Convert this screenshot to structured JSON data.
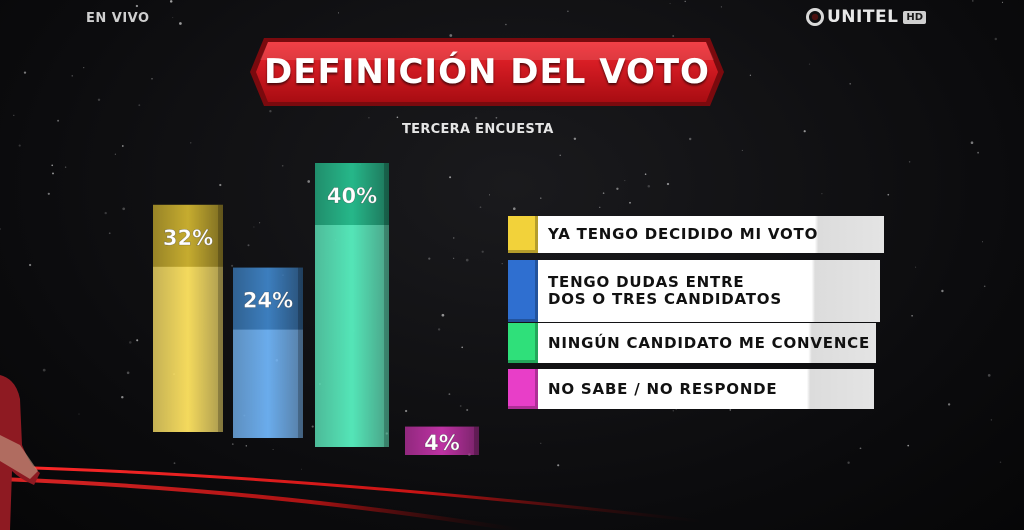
{
  "live_label": "EN VIVO",
  "logo": {
    "name": "UNITEL",
    "badge": "HD"
  },
  "title": "DEFINICIÓN DEL VOTO",
  "subtitle": "TERCERA ENCUESTA",
  "colors": {
    "banner": "#d4141c",
    "yellow": "#f2d23a",
    "blue": "#4a9ae8",
    "green": "#2fe0a8",
    "magenta": "#e83ec8"
  },
  "chart_data": {
    "type": "bar",
    "categories": [
      "YA TENGO DECIDIDO MI VOTO",
      "TENGO DUDAS ENTRE DOS O TRES CANDIDATOS",
      "NINGÚN CANDIDATO ME CONVENCE",
      "NO SABE / NO RESPONDE"
    ],
    "values": [
      32,
      24,
      40,
      4
    ],
    "labels": [
      "32%",
      "24%",
      "40%",
      "4%"
    ],
    "colors": [
      "#f2d23a",
      "#4a9ae8",
      "#2fe0a8",
      "#e83ec8"
    ],
    "title": "DEFINICIÓN DEL VOTO",
    "subtitle": "TERCERA ENCUESTA",
    "legend": "right"
  },
  "legend": [
    {
      "lines": [
        "YA TENGO DECIDIDO MI VOTO"
      ],
      "color": "#f2d23a"
    },
    {
      "lines": [
        "TENGO DUDAS ENTRE",
        "DOS O TRES CANDIDATOS"
      ],
      "color": "#2f6fd0"
    },
    {
      "lines": [
        "NINGÚN CANDIDATO ME CONVENCE"
      ],
      "color": "#2fe07a"
    },
    {
      "lines": [
        "NO SABE / NO RESPONDE"
      ],
      "color": "#e83ec8"
    }
  ]
}
